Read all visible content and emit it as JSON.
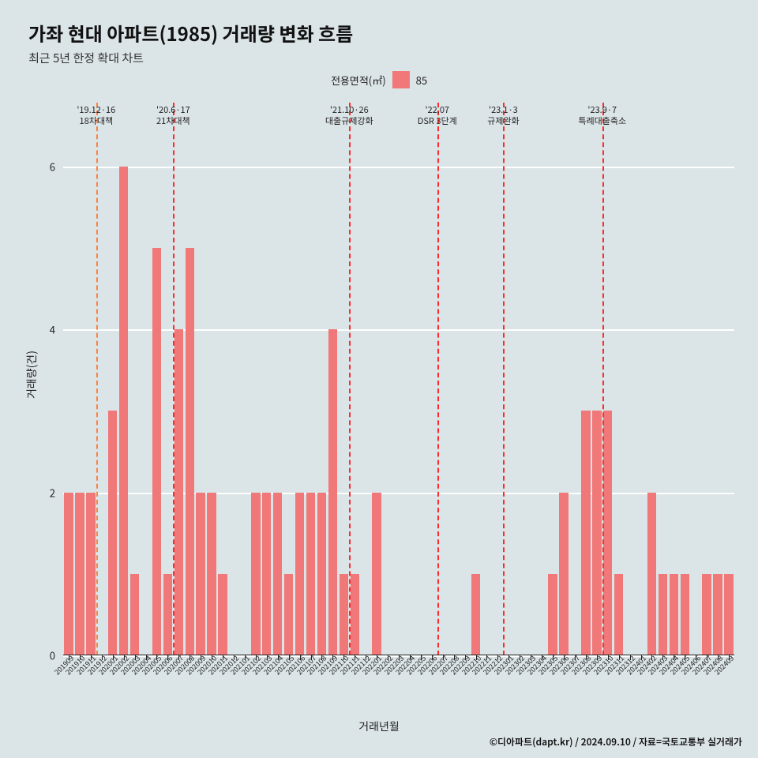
{
  "title": "가좌 현대 아파트(1985) 거래량 변화 흐름",
  "subtitle": "최근 5년 한정 확대 차트",
  "legend": {
    "label": "전용면적(㎡)",
    "series": "85",
    "color": "#f07878"
  },
  "ylabel": "거래량(건)",
  "xlabel": "거래년월",
  "credit": "©디아파트(dapt.kr) / 2024.09.10 / 자료=국토교통부 실거래가",
  "chart": {
    "type": "bar",
    "ylim": [
      0,
      6.3
    ],
    "yticks": [
      0,
      2,
      4,
      6
    ],
    "bar_color": "#f07878",
    "grid_color": "#ffffff",
    "background": "#dbe4e7",
    "bar_width_ratio": 0.82,
    "categories": [
      "201909",
      "201910",
      "201911",
      "201912",
      "202001",
      "202002",
      "202003",
      "202004",
      "202005",
      "202006",
      "202007",
      "202008",
      "202009",
      "202010",
      "202011",
      "202012",
      "202101",
      "202102",
      "202103",
      "202104",
      "202105",
      "202106",
      "202107",
      "202108",
      "202109",
      "202110",
      "202111",
      "202112",
      "202201",
      "202202",
      "202203",
      "202204",
      "202205",
      "202206",
      "202207",
      "202208",
      "202209",
      "202210",
      "202211",
      "202212",
      "202301",
      "202302",
      "202303",
      "202304",
      "202305",
      "202306",
      "202307",
      "202308",
      "202309",
      "202310",
      "202311",
      "202312",
      "202401",
      "202402",
      "202403",
      "202404",
      "202405",
      "202406",
      "202407",
      "202408",
      "202409"
    ],
    "values": [
      2,
      2,
      2,
      0,
      3,
      6,
      1,
      0,
      5,
      1,
      4,
      5,
      2,
      2,
      1,
      0,
      0,
      2,
      2,
      2,
      1,
      2,
      2,
      2,
      4,
      1,
      1,
      0,
      2,
      0,
      0,
      0,
      0,
      0,
      0,
      0,
      0,
      1,
      0,
      0,
      0,
      0,
      0,
      0,
      1,
      2,
      0,
      3,
      3,
      3,
      1,
      0,
      0,
      2,
      1,
      1,
      1,
      0,
      1,
      1,
      1
    ],
    "reference_lines": [
      {
        "at": "201912",
        "color": "#ff8040",
        "label_top": "'19.12·16",
        "label_bot": "18차대책",
        "offset": -0.5
      },
      {
        "at": "202006",
        "color": "#ff2a2a",
        "label_top": "'20.6·17",
        "label_bot": "21차대책",
        "offset": 0.5
      },
      {
        "at": "202110",
        "color": "#ff2a2a",
        "label_top": "'21.10·26",
        "label_bot": "대출규제강화",
        "offset": 0.5
      },
      {
        "at": "202207",
        "color": "#ff2a2a",
        "label_top": "'22.07",
        "label_bot": "DSR 3단계",
        "offset": -0.5
      },
      {
        "at": "202301",
        "color": "#ff2a2a",
        "label_top": "'23.1·3",
        "label_bot": "규제완화",
        "offset": -0.5
      },
      {
        "at": "202309",
        "color": "#ff2a2a",
        "label_top": "'23.9·7",
        "label_bot": "특례대출축소",
        "offset": 0.5
      }
    ]
  }
}
